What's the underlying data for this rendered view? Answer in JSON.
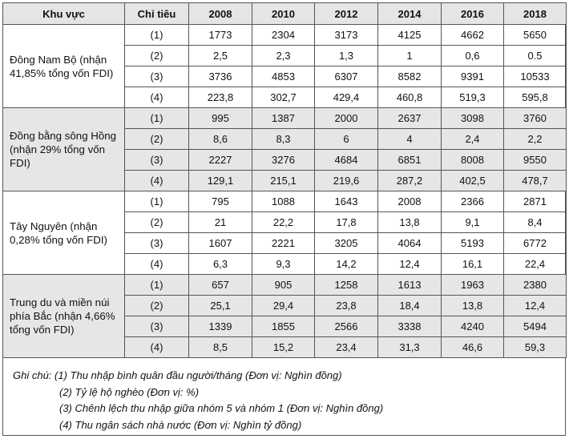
{
  "headers": [
    "Khu vực",
    "Chỉ tiêu",
    "2008",
    "2010",
    "2012",
    "2014",
    "2016",
    "2018"
  ],
  "regions": [
    {
      "name": "Đông Nam Bộ (nhận 41,85% tổng vốn FDI)",
      "rows": [
        {
          "indicator": "(1)",
          "values": [
            "1773",
            "2304",
            "3173",
            "4125",
            "4662",
            "5650"
          ]
        },
        {
          "indicator": "(2)",
          "values": [
            "2,5",
            "2,3",
            "1,3",
            "1",
            "0,6",
            "0.5"
          ]
        },
        {
          "indicator": "(3)",
          "values": [
            "3736",
            "4853",
            "6307",
            "8582",
            "9391",
            "10533"
          ]
        },
        {
          "indicator": "(4)",
          "values": [
            "223,8",
            "302,7",
            "429,4",
            "460,8",
            "519,3",
            "595,8"
          ]
        }
      ]
    },
    {
      "name": "Đồng bằng sông Hồng (nhận 29% tổng vốn FDI)",
      "rows": [
        {
          "indicator": "(1)",
          "values": [
            "995",
            "1387",
            "2000",
            "2637",
            "3098",
            "3760"
          ]
        },
        {
          "indicator": "(2)",
          "values": [
            "8,6",
            "8,3",
            "6",
            "4",
            "2,4",
            "2,2"
          ]
        },
        {
          "indicator": "(3)",
          "values": [
            "2227",
            "3276",
            "4684",
            "6851",
            "8008",
            "9550"
          ]
        },
        {
          "indicator": "(4)",
          "values": [
            "129,1",
            "215,1",
            "219,6",
            "287,2",
            "402,5",
            "478,7"
          ]
        }
      ]
    },
    {
      "name": "Tây Nguyên (nhận 0,28% tổng vốn FDI)",
      "rows": [
        {
          "indicator": "(1)",
          "values": [
            "795",
            "1088",
            "1643",
            "2008",
            "2366",
            "2871"
          ]
        },
        {
          "indicator": "(2)",
          "values": [
            "21",
            "22,2",
            "17,8",
            "13,8",
            "9,1",
            "8,4"
          ]
        },
        {
          "indicator": "(3)",
          "values": [
            "1607",
            "2221",
            "3205",
            "4064",
            "5193",
            "6772"
          ]
        },
        {
          "indicator": "(4)",
          "values": [
            "6,3",
            "9,3",
            "14,2",
            "12,4",
            "16,1",
            "22,4"
          ]
        }
      ]
    },
    {
      "name": "Trung du và miền núi phía Bắc (nhận 4,66% tổng vốn FDI)",
      "rows": [
        {
          "indicator": "(1)",
          "values": [
            "657",
            "905",
            "1258",
            "1613",
            "1963",
            "2380"
          ]
        },
        {
          "indicator": "(2)",
          "values": [
            "25,1",
            "29,4",
            "23,8",
            "18,4",
            "13,8",
            "12,4"
          ]
        },
        {
          "indicator": "(3)",
          "values": [
            "1339",
            "1855",
            "2566",
            "3338",
            "4240",
            "5494"
          ]
        },
        {
          "indicator": "(4)",
          "values": [
            "8,5",
            "15,2",
            "23,4",
            "31,3",
            "46,6",
            "59,3"
          ]
        }
      ]
    }
  ],
  "notes": [
    "Ghi chú: (1) Thu nhập bình quân đầu người/tháng  (Đơn vị: Nghìn đồng)",
    "(2) Tỷ lệ hộ nghèo (Đơn vị: %)",
    "(3) Chênh lệch thu nhập giữa nhóm 5 và nhóm 1 (Đơn vị: Nghìn đồng)",
    "(4) Thu ngân sách nhà nước (Đơn vị: Nghìn tỷ đồng)"
  ],
  "colors": {
    "header_bg": "#e5e5e5",
    "alt_region_bg": "#e6e6e6",
    "border": "#555555"
  }
}
